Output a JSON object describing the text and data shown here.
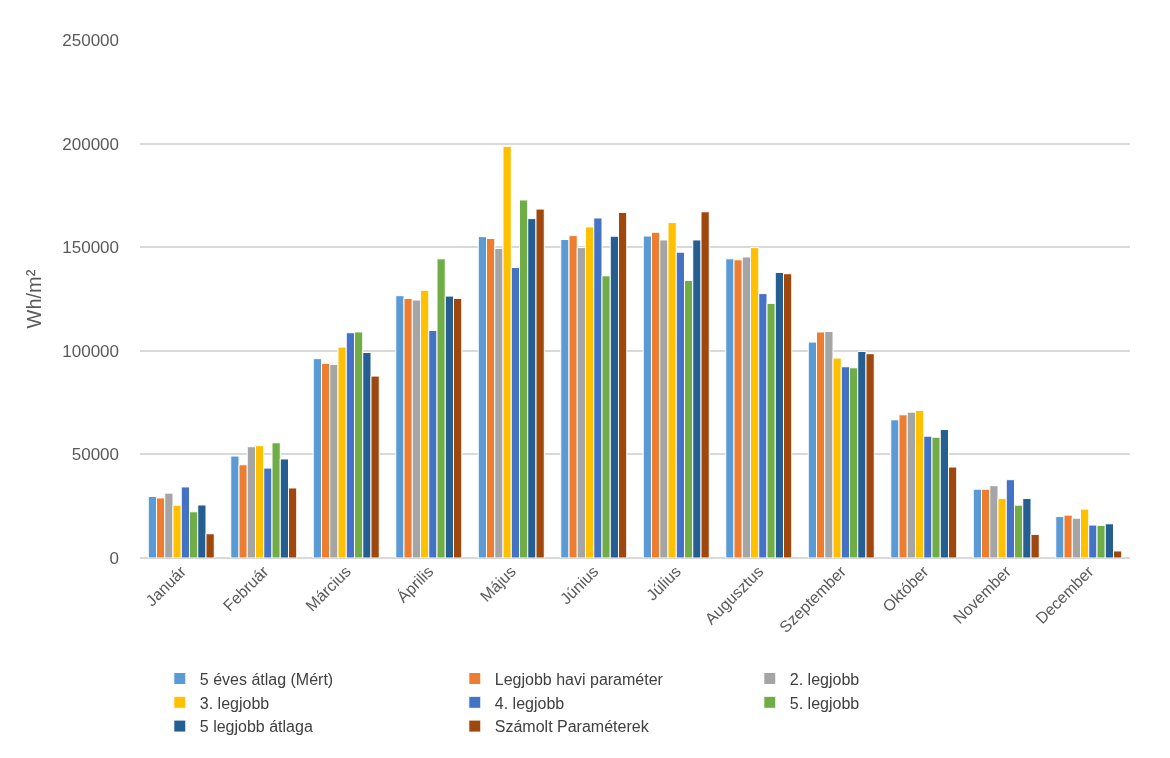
{
  "chart_data": {
    "type": "bar",
    "ylabel": "Wh/m²",
    "categories": [
      "Január",
      "Február",
      "Március",
      "Április",
      "Május",
      "Június",
      "Július",
      "Augusztus",
      "Szeptember",
      "Október",
      "November",
      "December"
    ],
    "series": [
      {
        "name": "5 éves átlag (Mért)",
        "color": "#5b9bd5",
        "values": [
          29700,
          49200,
          96200,
          126600,
          155100,
          153700,
          155400,
          144400,
          104200,
          66700,
          33200,
          20000
        ]
      },
      {
        "name": "Legjobb havi paraméter",
        "color": "#ed7d31",
        "values": [
          29000,
          45000,
          93900,
          125300,
          154200,
          155600,
          157200,
          143900,
          109100,
          69100,
          33200,
          20700
        ]
      },
      {
        "name": "2. legjobb",
        "color": "#a5a5a5",
        "values": [
          31300,
          53700,
          93400,
          124500,
          149400,
          149800,
          153500,
          145300,
          109300,
          70400,
          34900,
          19200
        ]
      },
      {
        "name": "3. legjobb",
        "color": "#ffc000",
        "values": [
          25500,
          54200,
          101800,
          129200,
          198700,
          159800,
          161900,
          149800,
          96500,
          71200,
          28800,
          23600
        ]
      },
      {
        "name": "4. legjobb",
        "color": "#4472c4",
        "values": [
          34300,
          43400,
          108700,
          109800,
          140200,
          164100,
          147600,
          127600,
          92300,
          58800,
          37800,
          15900
        ]
      },
      {
        "name": "5. legjobb",
        "color": "#70ad47",
        "values": [
          22300,
          55600,
          109100,
          144400,
          172800,
          136200,
          134000,
          122900,
          91800,
          58300,
          25500,
          15700
        ]
      },
      {
        "name": "5 legjobb átlaga",
        "color": "#255e91",
        "values": [
          25600,
          47800,
          99200,
          126400,
          163800,
          155300,
          153500,
          137800,
          99700,
          62000,
          28700,
          16500
        ]
      },
      {
        "name": "Számolt Paraméterek",
        "color": "#9e480e",
        "values": [
          11700,
          33800,
          87800,
          125300,
          168400,
          166800,
          167100,
          137200,
          98600,
          43900,
          11400,
          3400
        ]
      }
    ],
    "ylim": [
      0,
      250000
    ],
    "yticks": [
      0,
      50000,
      100000,
      150000,
      200000,
      250000
    ],
    "grid": "y",
    "legend": "bottom"
  }
}
